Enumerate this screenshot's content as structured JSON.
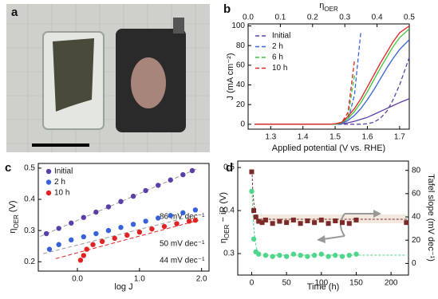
{
  "photo": {
    "panel": "a"
  },
  "chart_data": [
    {
      "type": "line",
      "panel": "b",
      "xlabel": [
        "Applied potential (V vs. RHE)"
      ],
      "ylabel": [
        "J (mA cm⁻²)"
      ],
      "x2label": [
        "η",
        "OER"
      ],
      "xlim": [
        1.23,
        1.73
      ],
      "xticks": [
        1.3,
        1.4,
        1.5,
        1.6,
        1.7
      ],
      "x2lim": [
        0,
        0.5
      ],
      "x2ticks": [
        {
          "value": 0,
          "label": "0.0"
        },
        0.1,
        0.2,
        0.3,
        0.4,
        0.5
      ],
      "ylim": [
        -5,
        102
      ],
      "yticks": [
        0,
        20,
        40,
        60,
        80,
        100
      ],
      "legend": "upper left",
      "x": [
        1.25,
        1.4,
        1.48,
        1.5,
        1.52,
        1.54,
        1.56,
        1.58,
        1.6,
        1.62,
        1.64,
        1.66,
        1.68,
        1.7,
        1.73
      ],
      "series": [
        {
          "name": "Initial",
          "color": "#5b3fa8",
          "dashed": true,
          "values": [
            0,
            0,
            0,
            0,
            0,
            0,
            0,
            0,
            0.5,
            2,
            6,
            13,
            25,
            40,
            68
          ]
        },
        {
          "name": "2 h",
          "color": "#3a62d8",
          "dashed": true,
          "values": [
            0,
            0,
            0,
            0,
            0.5,
            4,
            30,
            95,
            null,
            null,
            null,
            null,
            null,
            null,
            null
          ]
        },
        {
          "name": "6 h",
          "color": "#3fc43f",
          "dashed": true,
          "values": [
            0,
            0,
            0,
            0,
            1,
            8,
            50,
            null,
            null,
            null,
            null,
            null,
            null,
            null,
            null
          ]
        },
        {
          "name": "10 h",
          "color": "#e02222",
          "dashed": true,
          "values": [
            0,
            0,
            0,
            0,
            1.5,
            12,
            65,
            null,
            null,
            null,
            null,
            null,
            null,
            null,
            null
          ]
        },
        {
          "color": "#5b3fa8",
          "dashed": false,
          "values": [
            0,
            0,
            0,
            0,
            0.5,
            1.5,
            3,
            5,
            7,
            10,
            13,
            16,
            19,
            22,
            26
          ]
        },
        {
          "color": "#3a62d8",
          "dashed": false,
          "values": [
            0,
            0,
            0,
            0,
            1,
            4,
            9,
            16,
            25,
            35,
            46,
            57,
            67,
            76,
            86
          ]
        },
        {
          "color": "#3fc43f",
          "dashed": false,
          "values": [
            0,
            0,
            0,
            0,
            1.5,
            6,
            13,
            22,
            33,
            45,
            57,
            68,
            79,
            88,
            97
          ]
        },
        {
          "color": "#e02222",
          "dashed": false,
          "values": [
            0,
            0,
            0,
            0.5,
            2,
            8,
            16,
            26,
            38,
            50,
            62,
            73,
            84,
            93,
            100
          ]
        }
      ]
    },
    {
      "type": "scatter",
      "panel": "c",
      "xlabel": [
        "log J"
      ],
      "ylabel": [
        "η",
        "OER",
        " (V)"
      ],
      "xlim": [
        -0.63,
        2.12
      ],
      "xticks": [
        {
          "value": 0,
          "label": "0.0"
        },
        {
          "value": 1,
          "label": "1.0"
        },
        {
          "value": 2,
          "label": "2.0"
        }
      ],
      "ylim": [
        0.17,
        0.515
      ],
      "yticks": [
        0.2,
        0.3,
        0.4,
        0.5
      ],
      "legend": "upper left",
      "series": [
        {
          "name": "Initial",
          "color": "#5b3fa8",
          "slope_label": "86 mV dec⁻¹",
          "x": [
            -0.5,
            -0.3,
            -0.1,
            0.1,
            0.3,
            0.5,
            0.7,
            0.9,
            1.1,
            1.3,
            1.5,
            1.7,
            1.85
          ],
          "values": [
            0.29,
            0.307,
            0.324,
            0.342,
            0.359,
            0.376,
            0.393,
            0.41,
            0.428,
            0.445,
            0.462,
            0.479,
            0.492
          ],
          "fit_color": "#999999",
          "fit": {
            "x": [
              -0.6,
              1.95
            ],
            "y": [
              0.281,
              0.5
            ]
          }
        },
        {
          "name": "2 h",
          "color": "#3a62d8",
          "slope_label": "50 mV dec⁻¹",
          "x": [
            -0.45,
            -0.3,
            -0.1,
            0.1,
            0.3,
            0.5,
            0.7,
            0.9,
            1.1,
            1.3,
            1.5,
            1.7,
            1.9
          ],
          "values": [
            0.24,
            0.255,
            0.27,
            0.28,
            0.29,
            0.3,
            0.31,
            0.32,
            0.33,
            0.34,
            0.348,
            0.357,
            0.366
          ],
          "fit_color": "#999999",
          "fit": {
            "x": [
              -0.55,
              1.95
            ],
            "y": [
              0.226,
              0.351
            ]
          }
        },
        {
          "name": "10 h",
          "color": "#e02222",
          "slope_label": "44 mV dec⁻¹",
          "x": [
            0.05,
            0.1,
            0.15,
            0.25,
            0.4,
            0.6,
            0.8,
            1.0,
            1.2,
            1.4,
            1.6,
            1.8,
            1.9
          ],
          "values": [
            0.205,
            0.22,
            0.24,
            0.255,
            0.265,
            0.275,
            0.285,
            0.295,
            0.305,
            0.313,
            0.322,
            0.33,
            0.333
          ],
          "fit_color": "#e02222",
          "fit": {
            "x": [
              -0.35,
              1.95
            ],
            "y": [
              0.21,
              0.333
            ]
          }
        }
      ]
    },
    {
      "type": "scatter",
      "panel": "d",
      "xlabel": [
        "Time (h)"
      ],
      "ylabel": [
        "η",
        "OER",
        " − iR (V)"
      ],
      "y2label": [
        "Tafel slope (mV dec⁻¹)"
      ],
      "xlim": [
        -20,
        225
      ],
      "xticks": [
        0,
        50,
        100,
        150,
        200
      ],
      "ylim": [
        0.25,
        0.515
      ],
      "yticks": [
        0.3,
        0.4,
        0.5
      ],
      "y2lim": [
        -10,
        88
      ],
      "y2ticks": [
        0,
        20,
        40,
        60,
        80
      ],
      "series": [
        {
          "color": "#7b2a2a",
          "marker": "square",
          "x": [
            0,
            3,
            6,
            10,
            15,
            20,
            30,
            40,
            50,
            60,
            70,
            80,
            90,
            100,
            110,
            120,
            130,
            140,
            150,
            222
          ],
          "values": [
            0.49,
            0.4,
            0.385,
            0.375,
            0.372,
            0.378,
            0.37,
            0.375,
            0.372,
            0.378,
            0.37,
            0.376,
            0.372,
            0.378,
            0.37,
            0.376,
            0.372,
            0.37,
            0.378,
            0.372
          ]
        },
        {
          "color": "#4fd68a",
          "marker": "circle",
          "axis": "y2",
          "x": [
            0,
            3,
            6,
            10,
            20,
            30,
            40,
            50,
            60,
            70,
            80,
            90,
            100,
            110,
            120,
            130,
            140,
            150
          ],
          "values": [
            62,
            21,
            10,
            8,
            7,
            6,
            7,
            6,
            8,
            7,
            6,
            7,
            8,
            6,
            7,
            6,
            7,
            8
          ]
        }
      ]
    }
  ]
}
